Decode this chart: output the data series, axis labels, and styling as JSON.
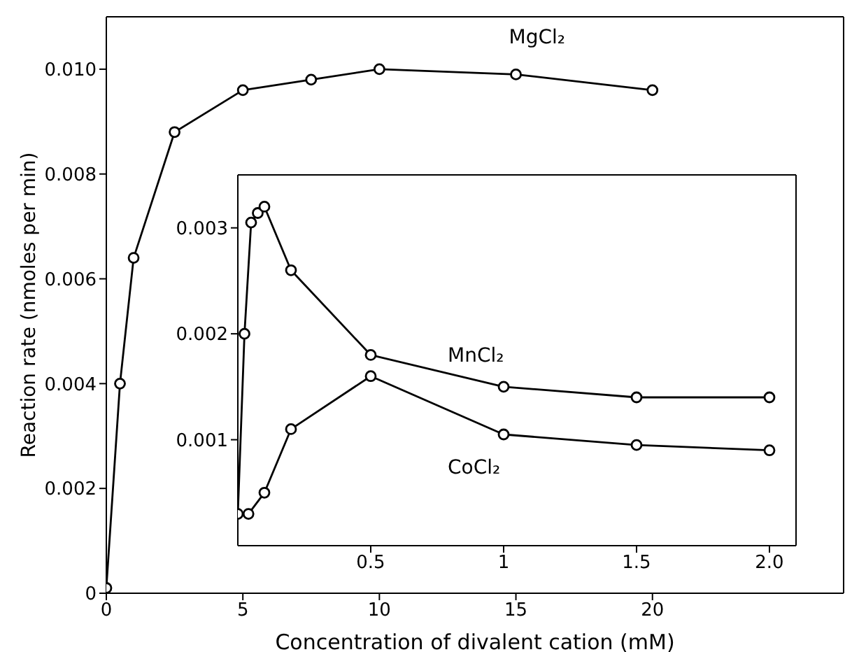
{
  "chart_data": [
    {
      "type": "line",
      "xlabel": "Concentration of divalent cation (mM)",
      "ylabel": "Reaction rate (nmoles per min)",
      "xlim": [
        0,
        27
      ],
      "ylim": [
        0,
        0.011
      ],
      "xticks": [
        0,
        5,
        10,
        15,
        20
      ],
      "yticks": [
        0,
        0.002,
        0.004,
        0.006,
        0.008,
        {
          "value": 0.01,
          "label": "0.010"
        }
      ],
      "marker": "circle",
      "series": [
        {
          "name": "MgCl₂",
          "color": "#000000",
          "x": [
            0,
            0.5,
            1,
            2.5,
            5,
            7.5,
            10,
            15,
            20
          ],
          "values": [
            0.0001,
            0.004,
            0.0064,
            0.0088,
            0.0096,
            0.0098,
            0.01,
            0.0099,
            0.0096
          ]
        }
      ]
    },
    {
      "type": "line",
      "xlim": [
        0,
        2.1
      ],
      "ylim": [
        0,
        0.0035
      ],
      "xticks": [
        0.5,
        1,
        1.5,
        {
          "value": 2,
          "label": "2.0"
        }
      ],
      "yticks": [
        0.001,
        0.002,
        0.003
      ],
      "marker": "circle",
      "series": [
        {
          "name": "MnCl₂",
          "color": "#000000",
          "x": [
            0,
            0.025,
            0.05,
            0.075,
            0.1,
            0.2,
            0.5,
            1,
            1.5,
            2
          ],
          "values": [
            0.0003,
            0.002,
            0.00305,
            0.00314,
            0.0032,
            0.0026,
            0.0018,
            0.0015,
            0.0014,
            0.0014
          ]
        },
        {
          "name": "CoCl₂",
          "color": "#000000",
          "x": [
            0.04,
            0.1,
            0.2,
            0.5,
            1,
            1.5,
            2
          ],
          "values": [
            0.0003,
            0.0005,
            0.0011,
            0.0016,
            0.00105,
            0.00095,
            0.0009
          ]
        }
      ]
    }
  ]
}
